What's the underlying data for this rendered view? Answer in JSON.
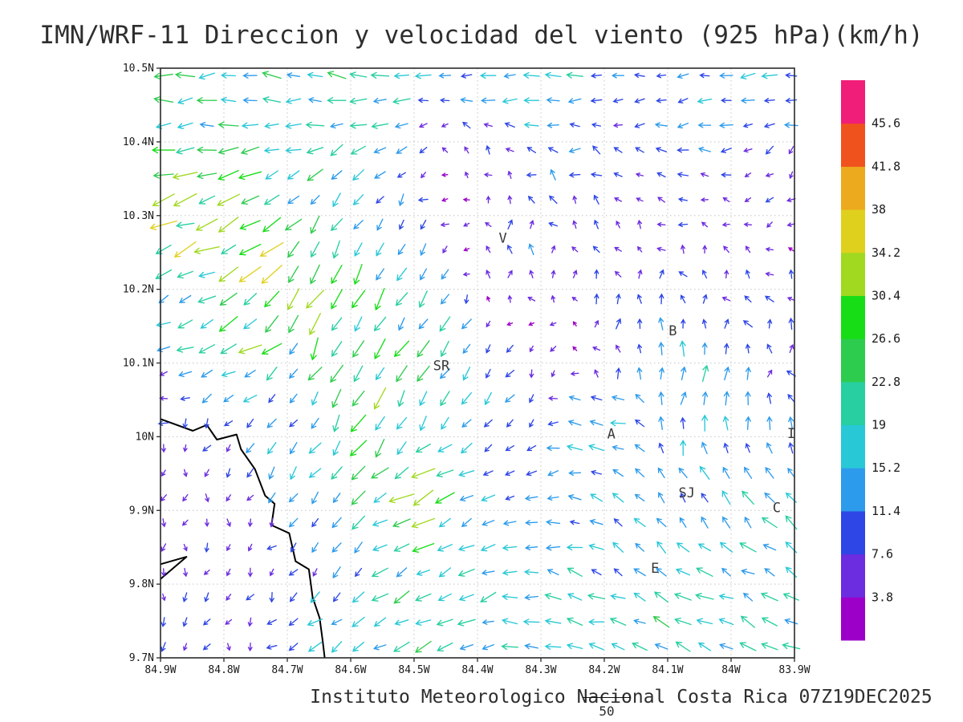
{
  "title": "IMN/WRF-11 Direccion y velocidad del viento (925 hPa)(km/h)",
  "footer": {
    "text": "Instituto Meteorologico Nacional Costa Rica 07Z19DEC2025",
    "vector_key_label": "50"
  },
  "chart_data": {
    "type": "vector-field",
    "variable": "Direccion y velocidad del viento",
    "model": "IMN/WRF-11",
    "level": "925 hPa",
    "units": "km/h",
    "valid_time": "07Z19DEC2025",
    "x_axis": {
      "ticks": [
        "84.9W",
        "84.8W",
        "84.7W",
        "84.6W",
        "84.5W",
        "84.4W",
        "84.3W",
        "84.2W",
        "84.1W",
        "84W",
        "83.9W"
      ],
      "lon_west_max": 84.9,
      "lon_west_min": 83.9,
      "grid_interval_deg": 0.1
    },
    "y_axis": {
      "ticks": [
        "10.5N",
        "10.4N",
        "10.3N",
        "10.2N",
        "10.1N",
        "10N",
        "9.9N",
        "9.8N",
        "9.7N"
      ],
      "lat_min": 9.7,
      "lat_max": 10.5,
      "grid_interval_deg": 0.1
    },
    "grid": {
      "cols": 30,
      "rows": 24
    },
    "vector_scale_reference_kmh": 50,
    "colorbar": {
      "values": [
        3.8,
        7.6,
        11.4,
        15.2,
        19,
        22.8,
        26.6,
        30.4,
        34.2,
        38,
        41.8,
        45.6
      ],
      "colors_bottom_to_top": [
        "#9c00c8",
        "#6c2ce0",
        "#2e46e6",
        "#2d9beb",
        "#28c8d7",
        "#28cfa0",
        "#2ecc4e",
        "#17dd17",
        "#a0d920",
        "#e0d01e",
        "#ecaa1e",
        "#f0521e",
        "#f01e78"
      ]
    },
    "station_labels": [
      {
        "text": "V",
        "lon": 84.36,
        "lat": 10.27
      },
      {
        "text": "B",
        "lon": 84.092,
        "lat": 10.144
      },
      {
        "text": "SR",
        "lon": 84.457,
        "lat": 10.097
      },
      {
        "text": "A",
        "lon": 84.189,
        "lat": 10.004
      },
      {
        "text": "SJ",
        "lon": 84.07,
        "lat": 9.924
      },
      {
        "text": "C",
        "lon": 83.928,
        "lat": 9.904
      },
      {
        "text": "E",
        "lon": 84.12,
        "lat": 9.822
      },
      {
        "text": "I",
        "lon": 83.905,
        "lat": 10.005
      }
    ],
    "control_points_format": "[lon_west_deg, lat_deg, u_east_kmh, v_north_kmh]",
    "control_points": [
      [
        84.88,
        10.49,
        -22,
        -4
      ],
      [
        84.6,
        10.48,
        -20,
        2
      ],
      [
        84.3,
        10.48,
        -17,
        -1
      ],
      [
        83.95,
        10.47,
        -15,
        -2
      ],
      [
        84.88,
        10.42,
        -13,
        3
      ],
      [
        84.86,
        10.36,
        -27,
        -7
      ],
      [
        84.88,
        10.29,
        -40,
        -12
      ],
      [
        84.8,
        10.27,
        -26,
        -16
      ],
      [
        84.74,
        10.2,
        -24,
        -22
      ],
      [
        84.8,
        10.14,
        -31,
        -6
      ],
      [
        84.62,
        10.16,
        -9,
        -26
      ],
      [
        84.55,
        10.04,
        -11,
        -25
      ],
      [
        84.47,
        10.29,
        -5,
        -15
      ],
      [
        84.36,
        10.24,
        2,
        16
      ],
      [
        84.42,
        10.33,
        -3,
        8
      ],
      [
        84.28,
        10.36,
        -8,
        5
      ],
      [
        84.1,
        10.41,
        -11,
        -2
      ],
      [
        83.94,
        10.34,
        -5,
        -4
      ],
      [
        84.16,
        10.15,
        2,
        12
      ],
      [
        84.05,
        10.06,
        5,
        19
      ],
      [
        83.94,
        10.11,
        -4,
        8
      ],
      [
        84.21,
        10.01,
        -19,
        2
      ],
      [
        84.86,
        9.91,
        -1,
        -6
      ],
      [
        84.79,
        9.78,
        -1,
        -7
      ],
      [
        84.66,
        9.86,
        -4,
        -8
      ],
      [
        84.51,
        9.92,
        -28,
        -12
      ],
      [
        84.45,
        9.81,
        -17,
        -9
      ],
      [
        84.26,
        9.76,
        -16,
        4
      ],
      [
        84.06,
        9.79,
        -19,
        6
      ],
      [
        83.96,
        9.92,
        -13,
        15
      ],
      [
        84.11,
        9.88,
        -6,
        10
      ],
      [
        84.35,
        9.95,
        -9,
        -4
      ],
      [
        84.72,
        10.44,
        -19,
        3
      ],
      [
        84.3,
        10.11,
        -3,
        -4
      ],
      [
        84.66,
        10.32,
        -10,
        -17
      ],
      [
        84.88,
        10.19,
        -5,
        -4
      ],
      [
        84.85,
        10.06,
        -3,
        -5
      ],
      [
        84.61,
        9.72,
        -14,
        -9
      ],
      [
        84.0,
        10.22,
        -4,
        6
      ],
      [
        83.92,
        10.0,
        2,
        10
      ],
      [
        84.48,
        10.17,
        -13,
        -19
      ],
      [
        84.68,
        10.04,
        -6,
        -10
      ],
      [
        84.15,
        10.29,
        -5,
        4
      ],
      [
        84.4,
        10.07,
        -6,
        -12
      ],
      [
        83.93,
        9.8,
        -15,
        8
      ]
    ],
    "coastline_main": [
      [
        84.9,
        10.024
      ],
      [
        84.849,
        10.008
      ],
      [
        84.827,
        10.016
      ],
      [
        84.811,
        9.996
      ],
      [
        84.78,
        10.003
      ],
      [
        84.773,
        9.983
      ],
      [
        84.751,
        9.956
      ],
      [
        84.735,
        9.92
      ],
      [
        84.72,
        9.909
      ],
      [
        84.725,
        9.88
      ],
      [
        84.697,
        9.869
      ],
      [
        84.687,
        9.831
      ],
      [
        84.666,
        9.82
      ],
      [
        84.66,
        9.782
      ],
      [
        84.649,
        9.754
      ],
      [
        84.644,
        9.722
      ],
      [
        84.641,
        9.7
      ]
    ],
    "coastline_spur": [
      [
        84.9,
        9.827
      ],
      [
        84.859,
        9.837
      ],
      [
        84.9,
        9.807
      ]
    ]
  }
}
